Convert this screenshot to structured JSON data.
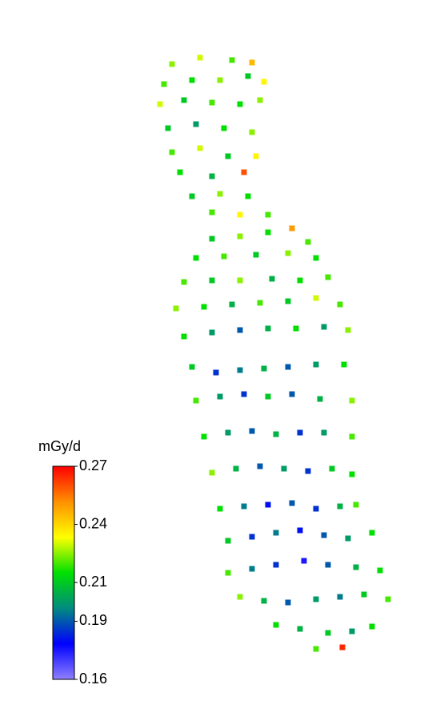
{
  "chart_data": {
    "type": "scatter",
    "xlim": [
      180,
      500
    ],
    "ylim": [
      820,
      60
    ],
    "x": [
      215,
      250,
      290,
      315,
      205,
      240,
      275,
      310,
      330,
      200,
      230,
      265,
      300,
      325,
      210,
      245,
      280,
      315,
      215,
      250,
      285,
      320,
      225,
      265,
      305,
      240,
      275,
      310,
      265,
      300,
      335,
      265,
      300,
      335,
      365,
      385,
      245,
      280,
      320,
      360,
      395,
      230,
      265,
      300,
      340,
      375,
      410,
      220,
      255,
      290,
      325,
      360,
      395,
      425,
      230,
      265,
      300,
      335,
      370,
      405,
      435,
      240,
      270,
      300,
      330,
      360,
      395,
      430,
      245,
      275,
      305,
      335,
      365,
      400,
      440,
      255,
      285,
      315,
      345,
      375,
      405,
      440,
      265,
      295,
      325,
      355,
      385,
      415,
      440,
      275,
      305,
      335,
      365,
      395,
      425,
      445,
      285,
      315,
      345,
      375,
      405,
      435,
      465,
      285,
      315,
      345,
      380,
      410,
      445,
      475,
      300,
      330,
      360,
      395,
      425,
      455,
      485,
      345,
      375,
      410,
      440,
      465,
      395,
      428
    ],
    "y": [
      80,
      72,
      75,
      78,
      105,
      100,
      100,
      95,
      102,
      130,
      125,
      128,
      130,
      125,
      160,
      155,
      160,
      165,
      190,
      185,
      195,
      195,
      215,
      220,
      215,
      245,
      242,
      245,
      265,
      268,
      268,
      298,
      295,
      290,
      285,
      302,
      322,
      320,
      318,
      316,
      322,
      352,
      350,
      350,
      348,
      350,
      346,
      385,
      383,
      380,
      378,
      376,
      372,
      380,
      420,
      415,
      412,
      410,
      410,
      408,
      412,
      458,
      465,
      462,
      460,
      458,
      455,
      455,
      500,
      495,
      492,
      495,
      492,
      498,
      500,
      545,
      540,
      538,
      542,
      540,
      540,
      545,
      590,
      585,
      582,
      585,
      588,
      585,
      592,
      635,
      632,
      630,
      628,
      635,
      632,
      630,
      675,
      670,
      665,
      662,
      668,
      672,
      665,
      715,
      710,
      705,
      700,
      705,
      708,
      712,
      745,
      750,
      752,
      748,
      745,
      742,
      748,
      780,
      785,
      790,
      788,
      782,
      810,
      808
    ],
    "values": [
      0.225,
      0.23,
      0.22,
      0.245,
      0.22,
      0.215,
      0.225,
      0.21,
      0.235,
      0.23,
      0.21,
      0.22,
      0.215,
      0.225,
      0.21,
      0.2,
      0.215,
      0.225,
      0.22,
      0.23,
      0.21,
      0.235,
      0.215,
      0.205,
      0.26,
      0.21,
      0.225,
      0.215,
      0.22,
      0.235,
      0.22,
      0.21,
      0.225,
      0.215,
      0.25,
      0.22,
      0.215,
      0.22,
      0.21,
      0.225,
      0.215,
      0.22,
      0.21,
      0.225,
      0.205,
      0.215,
      0.22,
      0.225,
      0.215,
      0.205,
      0.22,
      0.21,
      0.23,
      0.22,
      0.215,
      0.2,
      0.19,
      0.205,
      0.215,
      0.2,
      0.225,
      0.21,
      0.185,
      0.195,
      0.205,
      0.19,
      0.2,
      0.215,
      0.22,
      0.2,
      0.185,
      0.21,
      0.19,
      0.205,
      0.225,
      0.215,
      0.2,
      0.19,
      0.205,
      0.185,
      0.2,
      0.22,
      0.225,
      0.205,
      0.19,
      0.2,
      0.185,
      0.21,
      0.215,
      0.215,
      0.195,
      0.18,
      0.19,
      0.185,
      0.205,
      0.22,
      0.21,
      0.185,
      0.195,
      0.18,
      0.19,
      0.2,
      0.215,
      0.22,
      0.195,
      0.185,
      0.175,
      0.19,
      0.205,
      0.215,
      0.225,
      0.205,
      0.19,
      0.2,
      0.195,
      0.21,
      0.22,
      0.215,
      0.205,
      0.21,
      0.2,
      0.215,
      0.22,
      0.265
    ],
    "colorbar_label": "mGy/d",
    "clim": [
      0.16,
      0.27
    ],
    "colorbar_ticks": [
      0.16,
      0.19,
      0.21,
      0.24,
      0.27
    ],
    "colormap": [
      "#9080ff",
      "#0000ff",
      "#008a80",
      "#00e000",
      "#ffff00",
      "#ff9000",
      "#ff0000"
    ]
  }
}
